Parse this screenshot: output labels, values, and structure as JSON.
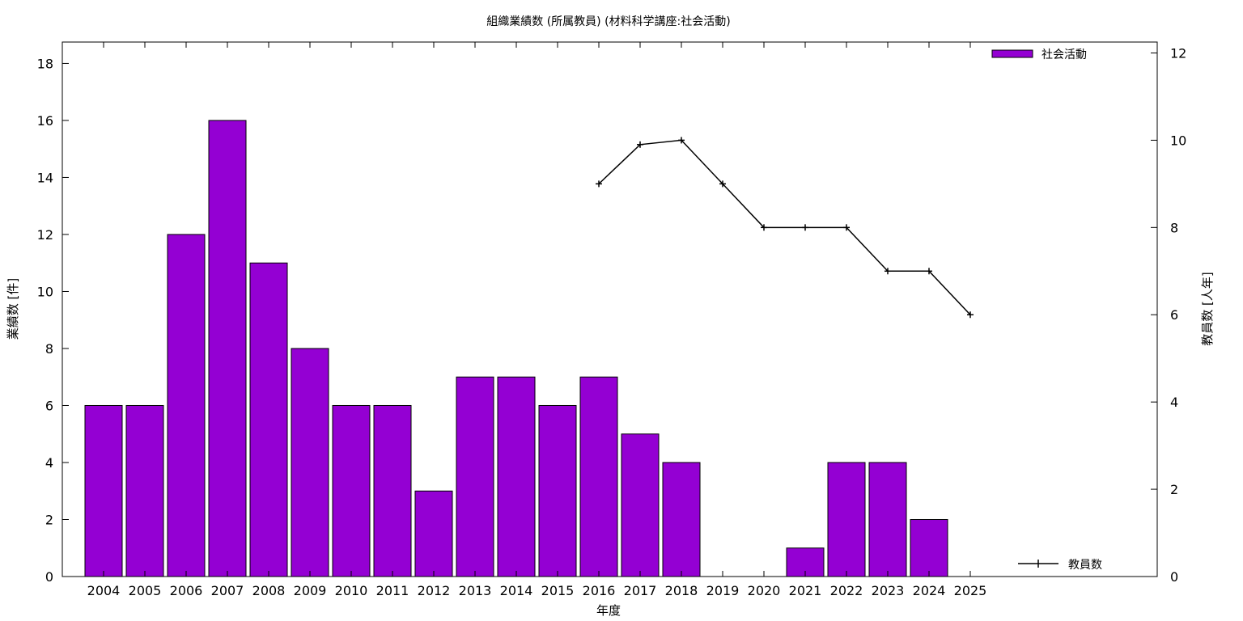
{
  "chart_data": {
    "type": "bar",
    "title": "組織業績数 (所属教員) (材料科学講座:社会活動)",
    "xlabel": "年度",
    "ylabel": "業績数 [件]",
    "y2label": "教員数 [人年]",
    "categories": [
      "2004",
      "2005",
      "2006",
      "2007",
      "2008",
      "2009",
      "2010",
      "2011",
      "2012",
      "2013",
      "2014",
      "2015",
      "2016",
      "2017",
      "2018",
      "2019",
      "2020",
      "2021",
      "2022",
      "2023",
      "2024",
      "2025"
    ],
    "series": [
      {
        "name": "社会活動",
        "type": "bar",
        "axis": "y",
        "color": "#9400d3",
        "values": [
          6,
          6,
          12,
          16,
          11,
          8,
          6,
          6,
          3,
          7,
          7,
          6,
          7,
          5,
          4,
          0,
          0,
          1,
          4,
          4,
          2,
          0
        ]
      },
      {
        "name": "教員数",
        "type": "line",
        "axis": "y2",
        "color": "#000000",
        "values": [
          null,
          null,
          null,
          null,
          null,
          null,
          null,
          null,
          null,
          null,
          null,
          null,
          9,
          9.9,
          10,
          9,
          8,
          8,
          8,
          7,
          7,
          6
        ]
      }
    ],
    "ylim": [
      0,
      18.75
    ],
    "y2lim": [
      0,
      12.25
    ],
    "yticks": [
      0,
      2,
      4,
      6,
      8,
      10,
      12,
      14,
      16,
      18
    ],
    "y2ticks": [
      0,
      2,
      4,
      6,
      8,
      10,
      12
    ],
    "legend": [
      "top-right",
      "bottom-right"
    ],
    "grid": false
  }
}
